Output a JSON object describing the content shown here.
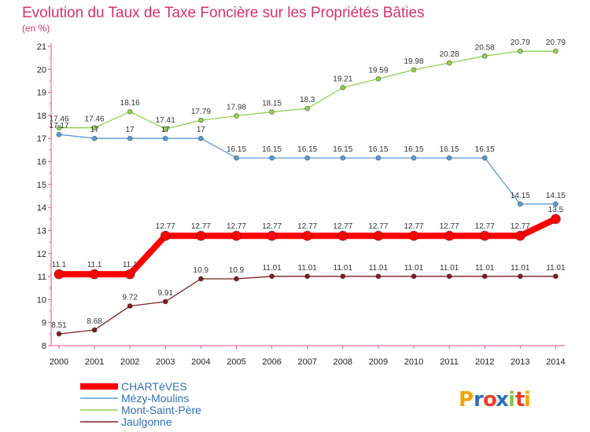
{
  "chart_data": {
    "type": "line",
    "title": "Evolution du Taux de Taxe Foncière sur les Propriétés Bâties",
    "subtitle": "(en %)",
    "categories": [
      "2000",
      "2001",
      "2002",
      "2003",
      "2004",
      "2005",
      "2006",
      "2007",
      "2008",
      "2009",
      "2010",
      "2011",
      "2012",
      "2013",
      "2014"
    ],
    "ylim": [
      8,
      21
    ],
    "yticks": [
      "8",
      "9",
      "10",
      "11",
      "12",
      "13",
      "14",
      "15",
      "16",
      "17",
      "18",
      "19",
      "20",
      "21"
    ],
    "grid": false,
    "legend_position": "bottom-left",
    "series": [
      {
        "name": "CHARTèVES",
        "color": "#ff0000",
        "values": [
          11.1,
          11.1,
          11.1,
          12.77,
          12.77,
          12.77,
          12.77,
          12.77,
          12.77,
          12.77,
          12.77,
          12.77,
          12.77,
          12.77,
          13.5
        ],
        "labels": [
          "11.1",
          "11.1",
          "11.1",
          "12.77",
          "12.77",
          "12.77",
          "12.77",
          "12.77",
          "12.77",
          "12.77",
          "12.77",
          "12.77",
          "12.77",
          "12.77",
          "13.5"
        ]
      },
      {
        "name": "Mézy-Moulins",
        "color": "#5b9bd5",
        "values": [
          17.17,
          17,
          17,
          17,
          17,
          16.15,
          16.15,
          16.15,
          16.15,
          16.15,
          16.15,
          16.15,
          16.15,
          14.15,
          14.15
        ],
        "labels": [
          "17.17",
          "17",
          "17",
          "17",
          "17",
          "16.15",
          "16.15",
          "16.15",
          "16.15",
          "16.15",
          "16.15",
          "16.15",
          "16.15",
          "14.15",
          "14.15"
        ]
      },
      {
        "name": "Mont-Saint-Père",
        "color": "#92d050",
        "values": [
          17.46,
          17.46,
          18.16,
          17.41,
          17.79,
          17.98,
          18.15,
          18.3,
          19.21,
          19.59,
          19.98,
          20.28,
          20.58,
          20.79,
          20.79
        ],
        "labels": [
          "17.46",
          "17.46",
          "18.16",
          "17.41",
          "17.79",
          "17.98",
          "18.15",
          "18.3",
          "19.21",
          "19.59",
          "19.98",
          "20.28",
          "20.58",
          "20.79",
          "20.79"
        ]
      },
      {
        "name": "Jaulgonne",
        "color": "#7f1f1f",
        "values": [
          8.51,
          8.68,
          9.72,
          9.91,
          10.9,
          10.9,
          11.01,
          11.01,
          11.01,
          11.01,
          11.01,
          11.01,
          11.01,
          11.01,
          11.01
        ],
        "labels": [
          "8.51",
          "8.68",
          "9.72",
          "9.91",
          "10.9",
          "10.9",
          "11.01",
          "11.01",
          "11.01",
          "11.01",
          "11.01",
          "11.01",
          "11.01",
          "11.01",
          "11.01"
        ]
      }
    ]
  },
  "logo": {
    "letters": [
      "P",
      "r",
      "o",
      "x",
      "i",
      "t",
      "i"
    ],
    "colors": [
      "#f2a400",
      "#2f6fb8",
      "#e8402a",
      "#2f6fb8",
      "#8bc34a",
      "#e8402a",
      "#f2a400"
    ]
  }
}
